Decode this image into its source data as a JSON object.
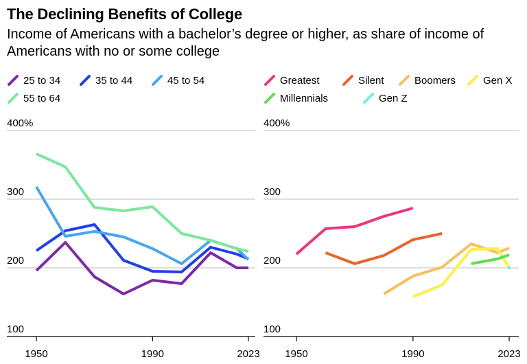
{
  "title": "The Declining Benefits of College",
  "subtitle": "Income of Americans with a bachelor’s degree or higher, as share of income of Americans with no or some college",
  "chart_data": [
    {
      "type": "line",
      "panel": "age",
      "y_ticks": [
        "400%",
        "300",
        "200",
        "100"
      ],
      "ylim": [
        100,
        400
      ],
      "x_ticks": [
        "1950",
        "1990",
        "2023"
      ],
      "xlim": [
        1950,
        2023
      ],
      "grid": true,
      "series": [
        {
          "name": "25 to 34",
          "color": "#7b2aa5",
          "x": [
            1950,
            1960,
            1970,
            1980,
            1990,
            2000,
            2010,
            2019,
            2023
          ],
          "values": [
            196,
            237,
            187,
            162,
            182,
            177,
            222,
            200,
            200
          ]
        },
        {
          "name": "35 to 44",
          "color": "#1f3fe8",
          "x": [
            1950,
            1960,
            1970,
            1980,
            1990,
            2000,
            2010,
            2019,
            2023
          ],
          "values": [
            225,
            254,
            263,
            211,
            195,
            194,
            230,
            220,
            213
          ]
        },
        {
          "name": "45 to 54",
          "color": "#4aa6ea",
          "x": [
            1950,
            1960,
            1970,
            1980,
            1990,
            2000,
            2010,
            2019,
            2023
          ],
          "values": [
            318,
            246,
            253,
            245,
            228,
            206,
            240,
            228,
            212
          ]
        },
        {
          "name": "55 to 64",
          "color": "#7ee6a0",
          "x": [
            1950,
            1960,
            1970,
            1980,
            1990,
            2000,
            2010,
            2019,
            2023
          ],
          "values": [
            366,
            347,
            288,
            283,
            289,
            250,
            240,
            228,
            224
          ]
        }
      ]
    },
    {
      "type": "line",
      "panel": "generation",
      "y_ticks": [
        "400%",
        "300",
        "200",
        "100"
      ],
      "ylim": [
        100,
        400
      ],
      "x_ticks": [
        "1950",
        "1990",
        "2023"
      ],
      "xlim": [
        1950,
        2023
      ],
      "grid": true,
      "series": [
        {
          "name": "Greatest",
          "color": "#e8377f",
          "x": [
            1950,
            1960,
            1970,
            1980,
            1990
          ],
          "values": [
            220,
            257,
            260,
            275,
            287
          ]
        },
        {
          "name": "Silent",
          "color": "#e8652a",
          "x": [
            1960,
            1970,
            1980,
            1990,
            2000
          ],
          "values": [
            222,
            206,
            218,
            241,
            250
          ]
        },
        {
          "name": "Boomers",
          "color": "#f5c060",
          "x": [
            1980,
            1990,
            2000,
            2010,
            2019,
            2023
          ],
          "values": [
            162,
            188,
            201,
            235,
            222,
            229
          ]
        },
        {
          "name": "Gen X",
          "color": "#faf04a",
          "x": [
            1990,
            2000,
            2010,
            2019,
            2023
          ],
          "values": [
            158,
            175,
            227,
            228,
            200
          ]
        },
        {
          "name": "Millennials",
          "color": "#5ee04d",
          "x": [
            2010,
            2019,
            2023
          ],
          "values": [
            206,
            213,
            219
          ]
        },
        {
          "name": "Gen Z",
          "color": "#7ee8e6",
          "x": [
            2023
          ],
          "values": [
            200
          ]
        }
      ]
    }
  ]
}
